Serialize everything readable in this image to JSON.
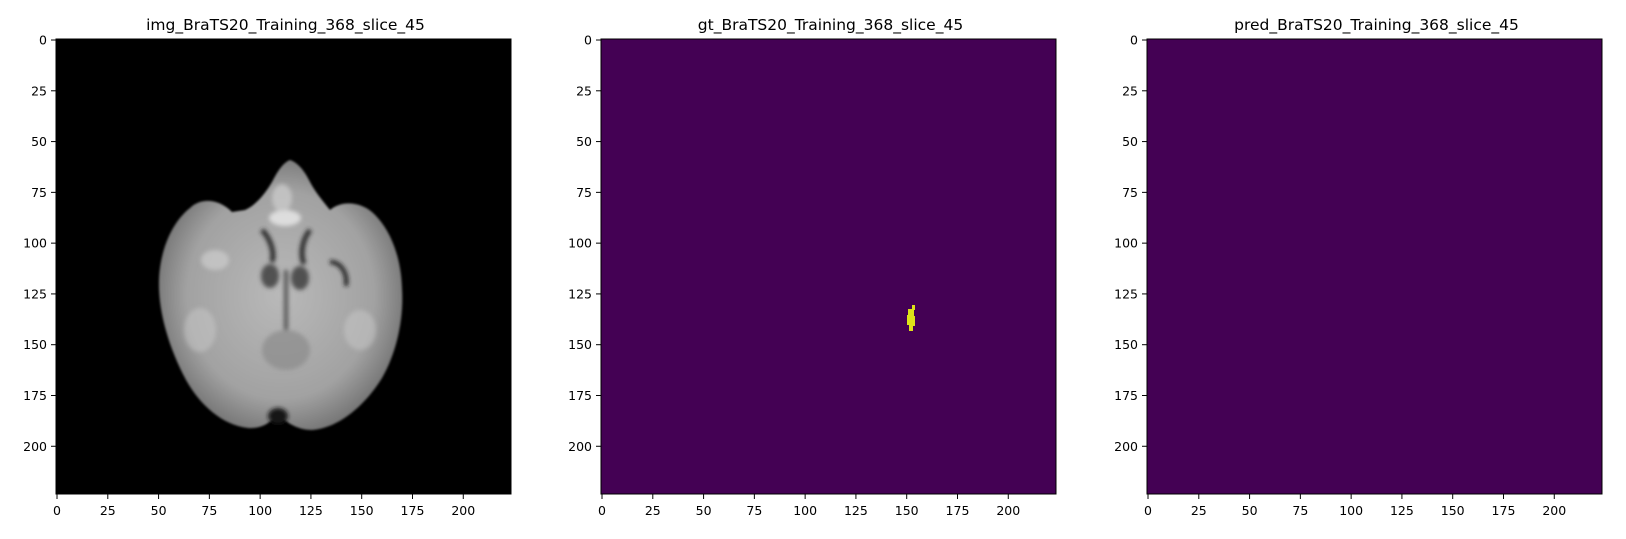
{
  "figure": {
    "panels": [
      {
        "id": "img",
        "title": "img_BraTS20_Training_368_slice_45",
        "colormap": "gray",
        "content": "brain-mri-slice"
      },
      {
        "id": "gt",
        "title": "gt_BraTS20_Training_368_slice_45",
        "colormap": "viridis",
        "content": "tumor-mask"
      },
      {
        "id": "pred",
        "title": "pred_BraTS20_Training_368_slice_45",
        "colormap": "viridis",
        "content": "empty-mask"
      }
    ],
    "xticks": [
      "0",
      "25",
      "50",
      "75",
      "100",
      "125",
      "150",
      "175",
      "200"
    ],
    "yticks": [
      "0",
      "25",
      "50",
      "75",
      "100",
      "125",
      "150",
      "175",
      "200"
    ],
    "extent": [
      0,
      224
    ],
    "colors": {
      "mask_bg": "#440154",
      "mask_fg": "#dde318",
      "mri_bg": "#000000"
    }
  }
}
